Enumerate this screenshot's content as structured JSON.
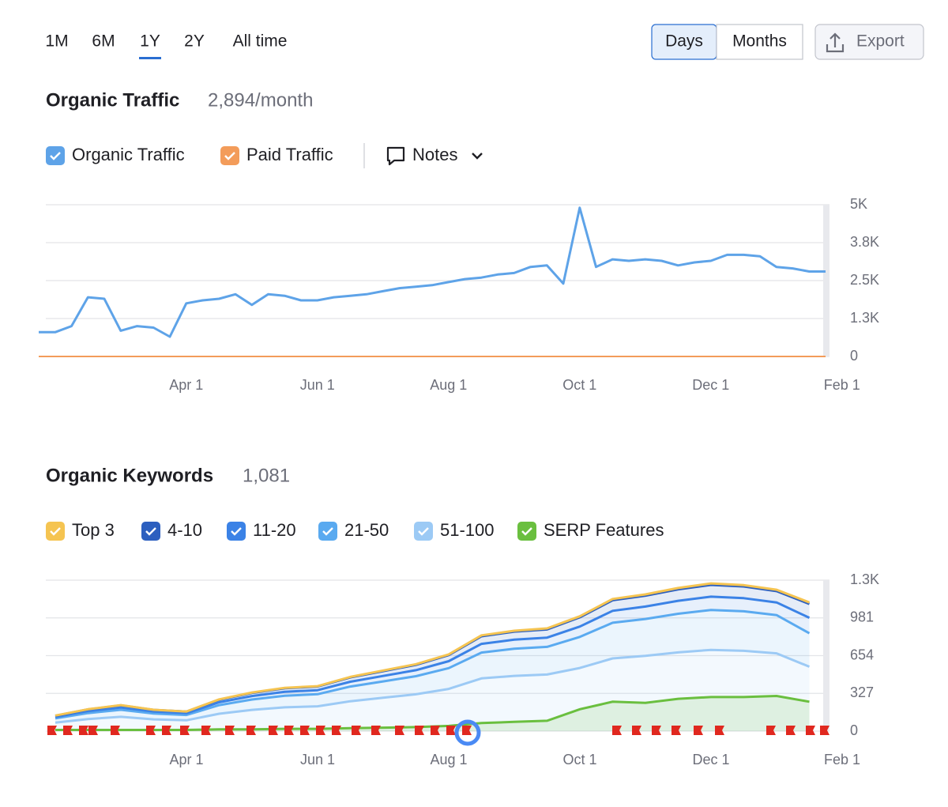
{
  "toolbar": {
    "ranges": [
      {
        "label": "1M",
        "selected": false
      },
      {
        "label": "6M",
        "selected": false
      },
      {
        "label": "1Y",
        "selected": true
      },
      {
        "label": "2Y",
        "selected": false
      },
      {
        "label": "All time",
        "selected": false
      }
    ],
    "granularity": [
      {
        "label": "Days",
        "selected": true
      },
      {
        "label": "Months",
        "selected": false
      }
    ],
    "export": "Export"
  },
  "notes": "Notes",
  "chart_data": [
    {
      "type": "line",
      "title": "Organic Traffic",
      "subtitle": "2,894/month",
      "categories": [
        null,
        null,
        null,
        null,
        null,
        null,
        null,
        null,
        null,
        "Apr 1",
        null,
        null,
        null,
        null,
        null,
        null,
        null,
        "Jun 1",
        null,
        null,
        null,
        null,
        null,
        null,
        null,
        "Aug 1",
        null,
        null,
        null,
        null,
        null,
        null,
        null,
        "Oct 1",
        null,
        null,
        null,
        null,
        null,
        null,
        null,
        "Dec 1",
        null,
        null,
        null,
        null,
        null,
        null,
        null,
        "Feb 1"
      ],
      "series": [
        {
          "name": "Organic Traffic",
          "color": "#5ea3e8",
          "values": [
            800,
            800,
            1000,
            1950,
            1900,
            850,
            1000,
            950,
            650,
            1750,
            1850,
            1900,
            2050,
            1700,
            2050,
            2000,
            1850,
            1850,
            1950,
            2000,
            2050,
            2150,
            2250,
            2300,
            2350,
            2450,
            2550,
            2600,
            2700,
            2750,
            2950,
            3000,
            2400,
            4900,
            2950,
            3200,
            3150,
            3200,
            3150,
            3000,
            3100,
            3150,
            3350,
            3350,
            3300,
            2950,
            2900,
            2800,
            2800,
            null
          ]
        },
        {
          "name": "Paid Traffic",
          "color": "#f39c5a",
          "values": [
            0,
            0,
            0,
            0,
            0,
            0,
            0,
            0,
            0,
            0,
            0,
            0,
            0,
            0,
            0,
            0,
            0,
            0,
            0,
            0,
            0,
            0,
            0,
            0,
            0,
            0,
            0,
            0,
            0,
            0,
            0,
            0,
            0,
            0,
            0,
            0,
            0,
            0,
            0,
            0,
            0,
            0,
            0,
            0,
            0,
            0,
            0,
            0,
            0,
            null
          ]
        }
      ],
      "ylim": [
        0,
        5000
      ],
      "yticks": [
        0,
        {
          "value": 1250,
          "label": "1.3K"
        },
        {
          "value": 2500,
          "label": "2.5K"
        },
        {
          "value": 3750,
          "label": "3.8K"
        },
        {
          "value": 5000,
          "label": "5K"
        }
      ],
      "grid": true
    },
    {
      "type": "area",
      "title": "Organic Keywords",
      "subtitle": "1,081",
      "categories": [
        null,
        null,
        null,
        null,
        "Apr 1",
        null,
        null,
        null,
        "Jun 1",
        null,
        null,
        null,
        "Aug 1",
        null,
        null,
        null,
        "Oct 1",
        null,
        null,
        null,
        "Dec 1",
        null,
        null,
        null,
        "Feb 1"
      ],
      "series": [
        {
          "name": "Top 3",
          "color": "#f5c451",
          "stacked": true,
          "values": [
            2,
            2,
            2,
            1,
            1,
            3,
            4,
            4,
            4,
            4,
            5,
            6,
            6,
            8,
            8,
            9,
            9,
            11,
            11,
            12,
            13,
            12,
            12,
            13,
            null
          ]
        },
        {
          "name": "4-10",
          "color": "#2c5fbf",
          "stacked": true,
          "values": [
            11,
            15,
            18,
            15,
            14,
            22,
            27,
            30,
            31,
            38,
            42,
            46,
            53,
            66,
            70,
            71,
            80,
            92,
            95,
            99,
            102,
            101,
            98,
            120,
            null
          ]
        },
        {
          "name": "11-20",
          "color": "#3b82e6",
          "stacked": true,
          "values": [
            12,
            17,
            20,
            17,
            15,
            25,
            30,
            34,
            35,
            42,
            47,
            52,
            60,
            75,
            78,
            80,
            90,
            103,
            107,
            112,
            115,
            114,
            110,
            134,
            null
          ]
        },
        {
          "name": "21-50",
          "color": "#5aaaf0",
          "stacked": true,
          "values": [
            36,
            51,
            61,
            50,
            46,
            74,
            90,
            101,
            105,
            127,
            142,
            157,
            180,
            224,
            235,
            240,
            269,
            309,
            320,
            335,
            346,
            342,
            331,
            290,
            null
          ]
        },
        {
          "name": "51-100",
          "color": "#9ccaf5",
          "stacked": true,
          "values": [
            74,
            105,
            124,
            102,
            94,
            151,
            184,
            206,
            215,
            259,
            289,
            319,
            366,
            457,
            479,
            490,
            547,
            630,
            652,
            682,
            704,
            696,
            674,
            558,
            null
          ]
        },
        {
          "name": "SERP Features",
          "color": "#6abf3f",
          "stacked": false,
          "values": [
            10,
            10,
            10,
            10,
            10,
            15,
            15,
            20,
            20,
            25,
            30,
            35,
            45,
            70,
            80,
            90,
            190,
            255,
            245,
            280,
            295,
            295,
            305,
            255,
            null
          ]
        }
      ],
      "ylim": [
        0,
        1308
      ],
      "yticks": [
        0,
        327,
        654,
        981,
        {
          "value": 1308,
          "label": "1.3K"
        }
      ],
      "grid": true
    }
  ]
}
